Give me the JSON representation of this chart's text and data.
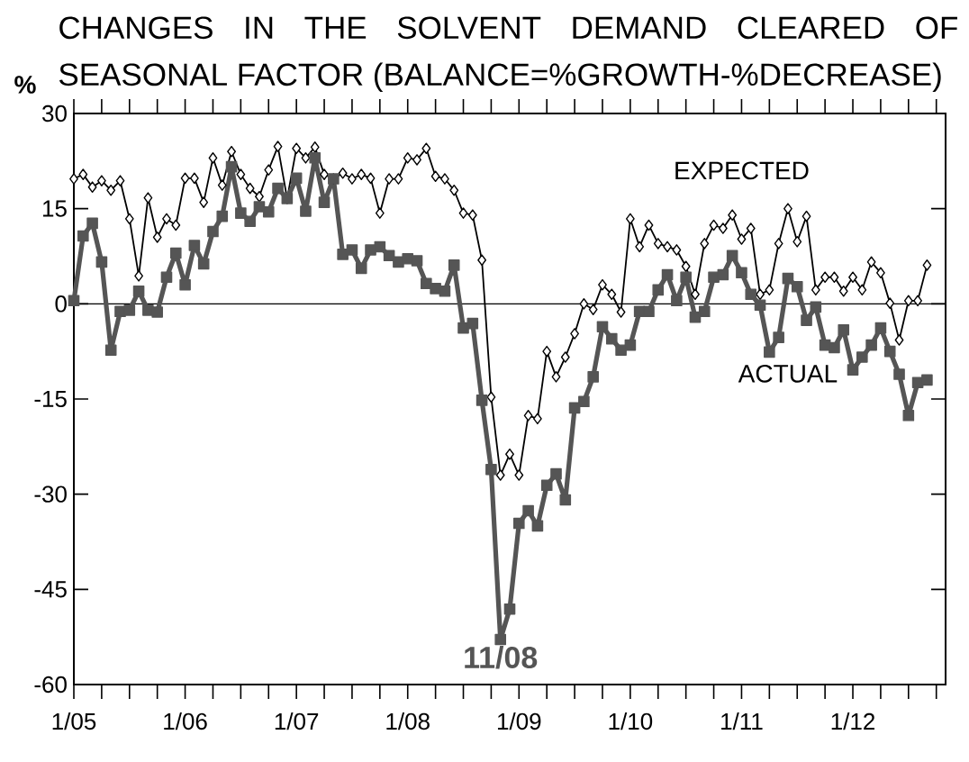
{
  "chart_data": {
    "type": "line",
    "title": "CHANGES IN THE SOLVENT DEMAND CLEARED OF SEASONAL FACTOR (BALANCE=%GROWTH-%DECREASE)",
    "ylabel": "%",
    "x": [
      "2005-01",
      "2005-02",
      "2005-03",
      "2005-04",
      "2005-05",
      "2005-06",
      "2005-07",
      "2005-08",
      "2005-09",
      "2005-10",
      "2005-11",
      "2005-12",
      "2006-01",
      "2006-02",
      "2006-03",
      "2006-04",
      "2006-05",
      "2006-06",
      "2006-07",
      "2006-08",
      "2006-09",
      "2006-10",
      "2006-11",
      "2006-12",
      "2007-01",
      "2007-02",
      "2007-03",
      "2007-04",
      "2007-05",
      "2007-06",
      "2007-07",
      "2007-08",
      "2007-09",
      "2007-10",
      "2007-11",
      "2007-12",
      "2008-01",
      "2008-02",
      "2008-03",
      "2008-04",
      "2008-05",
      "2008-06",
      "2008-07",
      "2008-08",
      "2008-09",
      "2008-10",
      "2008-11",
      "2008-12",
      "2009-01",
      "2009-02",
      "2009-03",
      "2009-04",
      "2009-05",
      "2009-06",
      "2009-07",
      "2009-08",
      "2009-09",
      "2009-10",
      "2009-11",
      "2009-12",
      "2010-01",
      "2010-02",
      "2010-03",
      "2010-04",
      "2010-05",
      "2010-06",
      "2010-07",
      "2010-08",
      "2010-09",
      "2010-10",
      "2010-11",
      "2010-12",
      "2011-01",
      "2011-02",
      "2011-03",
      "2011-04",
      "2011-05",
      "2011-06",
      "2011-07",
      "2011-08",
      "2011-09",
      "2011-10",
      "2011-11",
      "2011-12",
      "2012-01",
      "2012-02",
      "2012-03",
      "2012-04",
      "2012-05",
      "2012-06",
      "2012-07",
      "2012-08",
      "2012-09"
    ],
    "series": [
      {
        "name": "EXPECTED",
        "color": "#000000",
        "marker": "diamond",
        "values": [
          19.7,
          20.4,
          18.4,
          19.4,
          17.9,
          19.4,
          13.4,
          4.4,
          16.7,
          10.5,
          13.4,
          12.4,
          19.8,
          19.8,
          16,
          23,
          18.7,
          24,
          20.4,
          18.2,
          16.9,
          21.1,
          24.8,
          16.6,
          24.5,
          23,
          24.7,
          20.4,
          19.7,
          20.6,
          19.7,
          20.4,
          19.8,
          14.3,
          19.7,
          19.7,
          23,
          22.7,
          24.5,
          20.1,
          19.7,
          17.9,
          14.3,
          14,
          6.9,
          -14.7,
          -27,
          -23.7,
          -27,
          -17.6,
          -18.1,
          -7.5,
          -11.5,
          -8.4,
          -4.7,
          0,
          -0.9,
          3,
          1.5,
          -1.3,
          13.4,
          9,
          12.4,
          9.5,
          9,
          8.5,
          5.9,
          1.5,
          9.5,
          12.4,
          11.9,
          14,
          10.2,
          11.9,
          1.5,
          2.2,
          9.5,
          15,
          9.8,
          13.8,
          2.2,
          4.2,
          4.2,
          2,
          4.2,
          2.2,
          6.6,
          4.9,
          0.1,
          -5.7,
          0.5,
          0.5,
          6.1
        ]
      },
      {
        "name": "ACTUAL",
        "color": "#555555",
        "marker": "square",
        "values": [
          0.5,
          10.7,
          12.7,
          6.6,
          -7.3,
          -1.2,
          -1,
          2,
          -1,
          -1.3,
          4.2,
          8,
          3,
          9.2,
          6.3,
          11.4,
          13.8,
          21.6,
          14.3,
          13,
          15.3,
          14.5,
          18.2,
          16.6,
          19.8,
          14.6,
          23,
          16,
          19.7,
          7.8,
          8.5,
          5.6,
          8.5,
          9,
          7.6,
          6.6,
          7.1,
          6.8,
          3.2,
          2.4,
          2,
          6.1,
          -3.8,
          -3.1,
          -15.2,
          -26.1,
          -52.9,
          -48.1,
          -34.6,
          -32.6,
          -35,
          -28.6,
          -26.8,
          -30.9,
          -16.4,
          -15.4,
          -11.5,
          -3.6,
          -5.5,
          -7.3,
          -6.5,
          -1.2,
          -1.2,
          2.2,
          4.6,
          0.5,
          4.2,
          -2.1,
          -1.2,
          4.2,
          4.6,
          7.6,
          4.9,
          1.5,
          -0.2,
          -7.6,
          -5.3,
          4,
          2.7,
          -2.6,
          -0.5,
          -6.5,
          -6.9,
          -4.1,
          -10.4,
          -8.4,
          -6.5,
          -3.8,
          -7.5,
          -11.1,
          -17.6,
          -12.4,
          -12
        ]
      }
    ],
    "annotations": [
      {
        "text": "11/08",
        "x": "2008-11",
        "y": -52.9
      }
    ],
    "ref_lines": [
      {
        "axis": "y",
        "value": 0
      }
    ],
    "xlim": [
      "2005-01",
      "2012-11"
    ],
    "ylim": [
      -60,
      30
    ],
    "yticks": [
      -60,
      -45,
      -30,
      -15,
      0,
      15,
      30
    ],
    "xticks": [
      {
        "value": "2005-01",
        "label": "1/05"
      },
      {
        "value": "2005-04",
        "label": null
      },
      {
        "value": "2005-07",
        "label": null
      },
      {
        "value": "2005-10",
        "label": null
      },
      {
        "value": "2006-01",
        "label": "1/06"
      },
      {
        "value": "2006-04",
        "label": null
      },
      {
        "value": "2006-07",
        "label": null
      },
      {
        "value": "2006-10",
        "label": null
      },
      {
        "value": "2007-01",
        "label": "1/07"
      },
      {
        "value": "2007-04",
        "label": null
      },
      {
        "value": "2007-07",
        "label": null
      },
      {
        "value": "2007-10",
        "label": null
      },
      {
        "value": "2008-01",
        "label": "1/08"
      },
      {
        "value": "2008-04",
        "label": null
      },
      {
        "value": "2008-07",
        "label": null
      },
      {
        "value": "2008-10",
        "label": null
      },
      {
        "value": "2009-01",
        "label": "1/09"
      },
      {
        "value": "2009-04",
        "label": null
      },
      {
        "value": "2009-07",
        "label": null
      },
      {
        "value": "2009-10",
        "label": null
      },
      {
        "value": "2010-01",
        "label": "1/10"
      },
      {
        "value": "2010-04",
        "label": null
      },
      {
        "value": "2010-07",
        "label": null
      },
      {
        "value": "2010-10",
        "label": null
      },
      {
        "value": "2011-01",
        "label": "1/11"
      },
      {
        "value": "2011-04",
        "label": null
      },
      {
        "value": "2011-07",
        "label": null
      },
      {
        "value": "2011-10",
        "label": null
      },
      {
        "value": "2012-01",
        "label": "1/12"
      },
      {
        "value": "2012-04",
        "label": null
      },
      {
        "value": "2012-07",
        "label": null
      },
      {
        "value": "2012-10",
        "label": null
      }
    ],
    "legend": false
  }
}
